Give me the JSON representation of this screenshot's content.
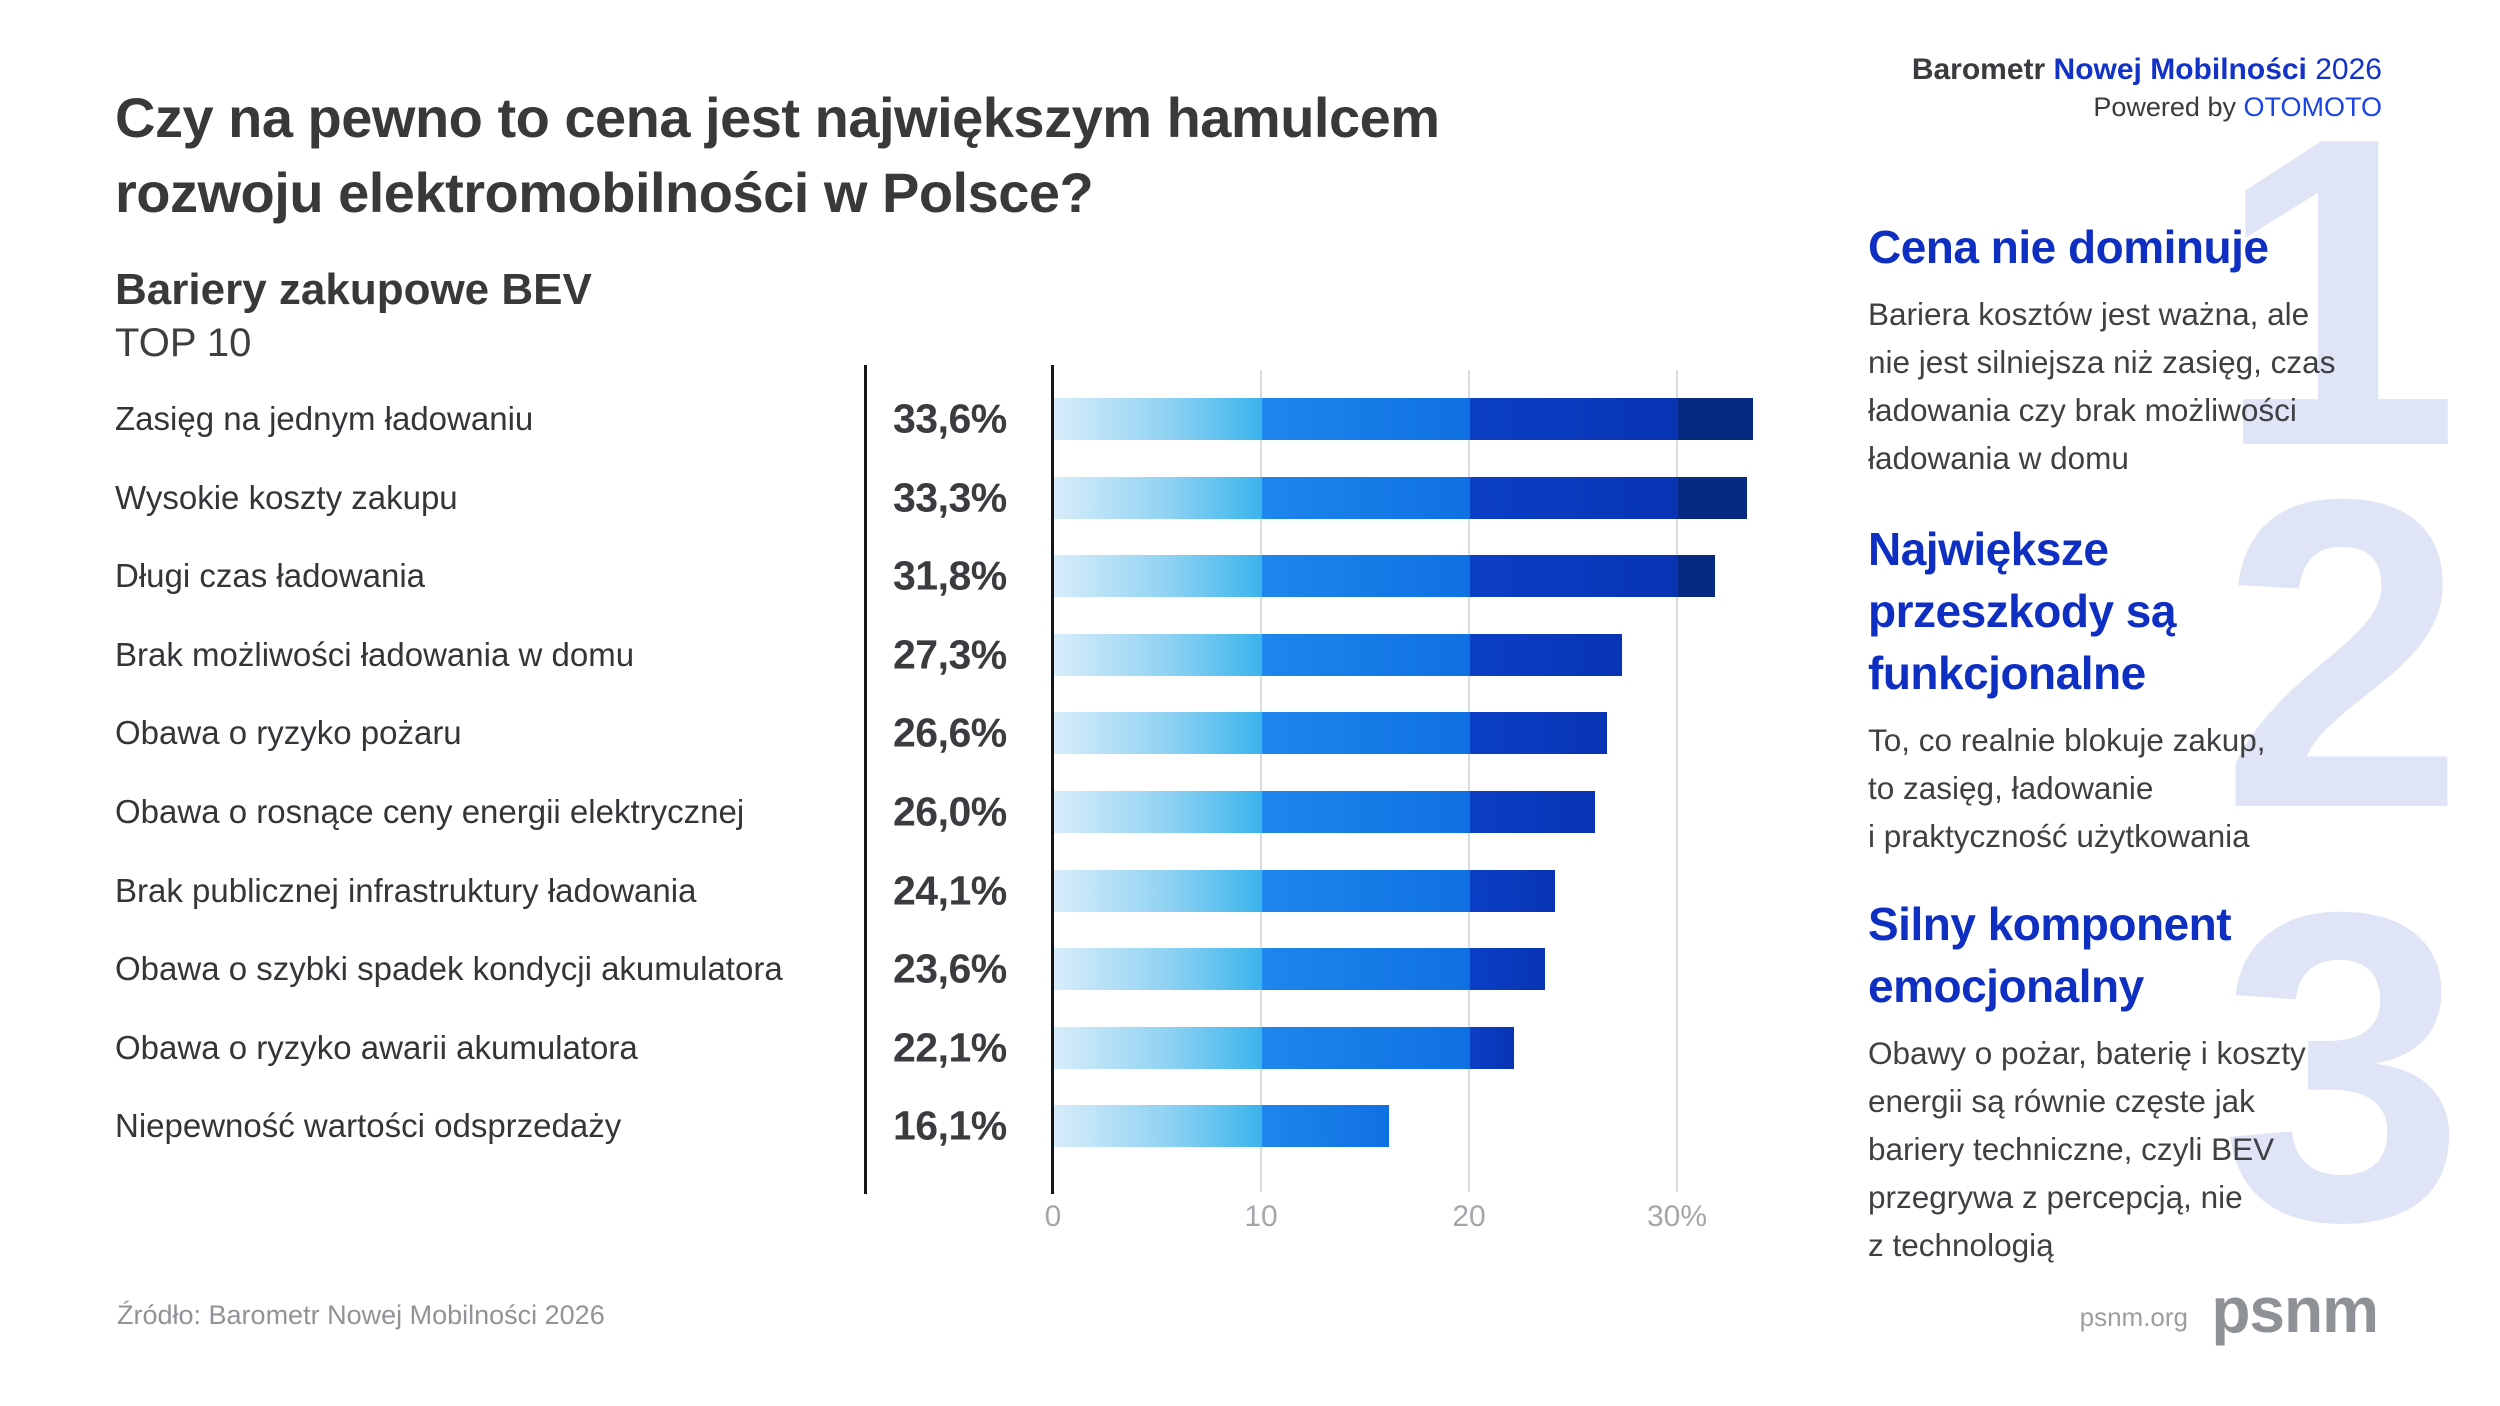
{
  "brand_header": {
    "barometr": "Barometr",
    "nowej_mobilnosci": "Nowej Mobilności",
    "year": "2026",
    "powered_prefix": "Powered by",
    "powered_brand": "OTOMOTO"
  },
  "title": {
    "lines": [
      "Czy na pewno to cena jest największym hamulcem",
      "rozwoju elektromobilności w Polsce?"
    ]
  },
  "chart_header": {
    "title": "Bariery zakupowe BEV",
    "subtitle": "TOP 10"
  },
  "chart_data": {
    "type": "bar",
    "orientation": "horizontal",
    "title": "Bariery zakupowe BEV — TOP 10",
    "categories": [
      "Zasięg na jednym ładowaniu",
      "Wysokie koszty zakupu",
      "Długi czas ładowania",
      "Brak możliwości ładowania w domu",
      "Obawa o ryzyko pożaru",
      "Obawa o rosnące ceny energii elektrycznej",
      "Brak publicznej infrastruktury ładowania",
      "Obawa o szybki spadek kondycji akumulatora",
      "Obawa o ryzyko awarii akumulatora",
      "Niepewność wartości odsprzedaży"
    ],
    "values": [
      33.6,
      33.3,
      31.8,
      27.3,
      26.6,
      26.0,
      24.1,
      23.6,
      22.1,
      16.1
    ],
    "value_labels": [
      "33,6%",
      "33,3%",
      "31,8%",
      "27,3%",
      "26,6%",
      "26,0%",
      "24,1%",
      "23,6%",
      "22,1%",
      "16,1%"
    ],
    "xlim": [
      0,
      35.5
    ],
    "xticks": [
      0,
      10,
      20,
      30
    ],
    "xtick_labels": [
      "0",
      "10",
      "20",
      "30%"
    ],
    "grid": "vertical gridlines at 10/20/30, black axis at 0",
    "legend_position": "none",
    "segment_step": 10,
    "segment_colors": {
      "s1": "gradient #d8edfa → #3ab4ec (0–10)",
      "s2": "gradient #1e86ec → #0f70e2 (10–20)",
      "s3": "gradient #0b3fc6 → #0834b4 (20–30)",
      "s4": "#062a82 (30+)"
    }
  },
  "insights": [
    {
      "number": "1",
      "heading_lines": [
        "Cena nie dominuje"
      ],
      "body_lines": [
        "Bariera kosztów jest ważna, ale",
        "nie jest silniejsza niż zasięg, czas",
        "ładowania czy brak możliwości",
        "ładowania w domu"
      ]
    },
    {
      "number": "2",
      "heading_lines": [
        "Największe",
        "przeszkody są",
        "funkcjonalne"
      ],
      "body_lines": [
        "To, co realnie blokuje zakup,",
        "to zasięg, ładowanie",
        "i praktyczność użytkowania"
      ]
    },
    {
      "number": "3",
      "heading_lines": [
        "Silny komponent",
        "emocjonalny"
      ],
      "body_lines": [
        "Obawy o pożar, baterię i koszty",
        "energii są równie częste jak",
        "bariery techniczne, czyli BEV",
        "przegrywa z percepcją, nie",
        "z technologią"
      ]
    }
  ],
  "footer": {
    "source": "Źródło: Barometr Nowej Mobilności 2026",
    "site": "psnm.org",
    "logo_text": "psnm"
  },
  "colors": {
    "heading_blue": "#0e2fc1",
    "brand_blue": "#1232c8",
    "otomoto_blue": "#1b44e4",
    "watermark": "#dfe4f6",
    "text_dark": "#38393b",
    "text_gray": "#909397",
    "grid_gray": "#d9dbdd"
  }
}
